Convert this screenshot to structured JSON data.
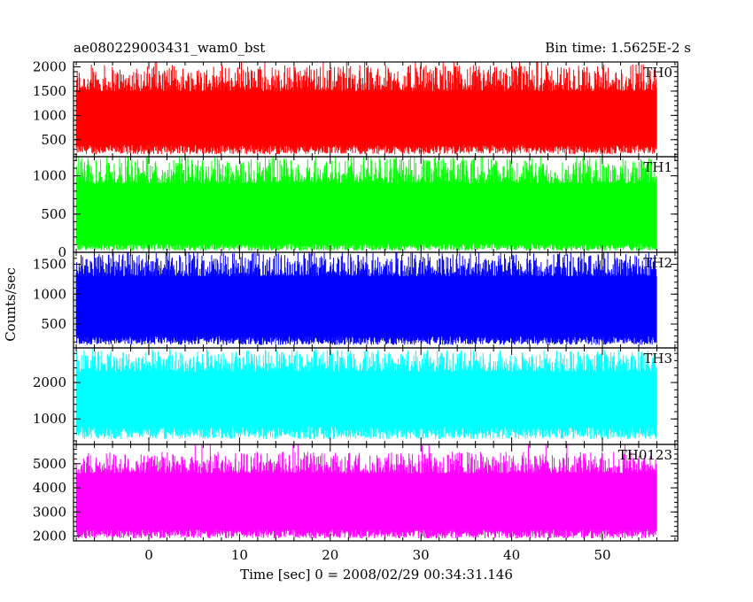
{
  "header": {
    "title": "ae080229003431_wam0_bst",
    "bin_time": "Bin time: 1.5625E-2 s"
  },
  "chart_data": {
    "type": "line",
    "title": "ae080229003431_wam0_bst",
    "subtitle": "Bin time: 1.5625E-2 s",
    "xlabel": "Time [sec] 0 = 2008/02/29 00:34:31.146",
    "ylabel": "Counts/sec",
    "xlim": [
      -8.3,
      58.3
    ],
    "xticks": [
      0,
      10,
      20,
      30,
      40,
      50
    ],
    "x_range_data": [
      -8.0,
      56.0
    ],
    "bin_time_sec": 0.015625,
    "panels": [
      {
        "name": "TH0",
        "color": "#ff0000",
        "ylim": [
          150,
          2100
        ],
        "yticks": [
          500,
          1000,
          1500,
          2000
        ],
        "mean": 880,
        "min_envelope": [
          200,
          400
        ],
        "max_envelope": [
          1500,
          2050
        ]
      },
      {
        "name": "TH1",
        "color": "#00ff00",
        "ylim": [
          0,
          1250
        ],
        "yticks": [
          0,
          500,
          1000
        ],
        "mean": 500,
        "min_envelope": [
          20,
          120
        ],
        "max_envelope": [
          900,
          1250
        ]
      },
      {
        "name": "TH2",
        "color": "#0000ff",
        "ylim": [
          100,
          1700
        ],
        "yticks": [
          500,
          1000,
          1500
        ],
        "mean": 700,
        "min_envelope": [
          150,
          300
        ],
        "max_envelope": [
          1300,
          1700
        ]
      },
      {
        "name": "TH3",
        "color": "#00ffff",
        "ylim": [
          300,
          2950
        ],
        "yticks": [
          1000,
          2000
        ],
        "mean": 1500,
        "min_envelope": [
          450,
          800
        ],
        "max_envelope": [
          2300,
          2900
        ]
      },
      {
        "name": "TH0123",
        "color": "#ff00ff",
        "ylim": [
          1800,
          5800
        ],
        "yticks": [
          2000,
          3000,
          4000,
          5000
        ],
        "mean": 3300,
        "min_envelope": [
          1900,
          2300
        ],
        "max_envelope": [
          4600,
          5500
        ]
      }
    ]
  }
}
